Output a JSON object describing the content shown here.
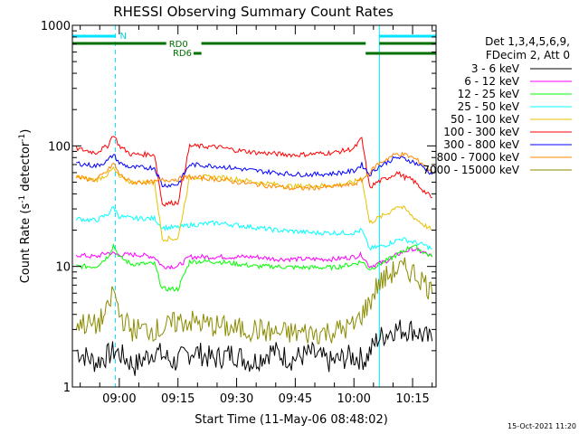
{
  "chart_data": {
    "type": "line",
    "title": "RHESSI Observing Summary Count Rates",
    "xlabel": "Start Time (11-May-06 08:48:02)",
    "ylabel_main": "Count Rate (s",
    "ylabel_sup1": "-1",
    "ylabel_mid": " detector",
    "ylabel_sup2": "-1",
    "ylabel_end": ")",
    "y_scale": "log",
    "ylim": [
      1,
      1000
    ],
    "xlim_minutes": [
      -12,
      81
    ],
    "x_ticks": [
      {
        "minute": 0,
        "label": "09:00"
      },
      {
        "minute": 15,
        "label": "09:15"
      },
      {
        "minute": 30,
        "label": "09:30"
      },
      {
        "minute": 45,
        "label": "09:45"
      },
      {
        "minute": 60,
        "label": "10:00"
      },
      {
        "minute": 75,
        "label": "10:15"
      }
    ],
    "y_ticks": [
      {
        "value": 1,
        "label": "1"
      },
      {
        "value": 10,
        "label": "10"
      },
      {
        "value": 100,
        "label": "100"
      },
      {
        "value": 1000,
        "label": "1000"
      }
    ],
    "legend_header_1": "Det 1,3,4,5,6,9,",
    "legend_header_2": "FDecim 2, Att 0",
    "legend_position": "right",
    "annotations": {
      "n_label": "N",
      "rd0_label": "RD0",
      "rd6_label": "RD6",
      "timestamp": "15-Oct-2021 11:20"
    },
    "night_markers": [
      {
        "from": -12,
        "to": -1
      },
      {
        "from": 66.5,
        "to": 81
      }
    ],
    "rd0_markers": [
      {
        "from": -12,
        "to": 12
      },
      {
        "from": 21,
        "to": 63
      },
      {
        "from": 66.5,
        "to": 81
      }
    ],
    "rd6_markers": [
      {
        "from": 19,
        "to": 21
      },
      {
        "from": 63,
        "to": 81
      }
    ],
    "series": [
      {
        "name": "3 - 6 keV",
        "color": "#000000",
        "points": [
          [
            -11,
            2
          ],
          [
            -6,
            1.6
          ],
          [
            -1,
            2
          ],
          [
            4,
            1.5
          ],
          [
            9,
            2
          ],
          [
            14,
            1.6
          ],
          [
            19,
            2
          ],
          [
            24,
            1.7
          ],
          [
            29,
            1.9
          ],
          [
            34,
            1.6
          ],
          [
            39,
            2
          ],
          [
            44,
            1.7
          ],
          [
            49,
            1.9
          ],
          [
            54,
            1.6
          ],
          [
            59,
            1.8
          ],
          [
            63,
            1.7
          ],
          [
            66,
            2.5
          ],
          [
            70,
            3
          ],
          [
            75,
            3
          ],
          [
            80,
            2.4
          ]
        ]
      },
      {
        "name": "6 - 12 keV",
        "color": "#ff00ff",
        "points": [
          [
            -11,
            12.5
          ],
          [
            -6,
            12
          ],
          [
            -3,
            13
          ],
          [
            0,
            12.5
          ],
          [
            5,
            12.5
          ],
          [
            9,
            12
          ],
          [
            11,
            10
          ],
          [
            15,
            10
          ],
          [
            18,
            12
          ],
          [
            25,
            12
          ],
          [
            30,
            12
          ],
          [
            35,
            12
          ],
          [
            40,
            11.5
          ],
          [
            45,
            11.5
          ],
          [
            50,
            11.5
          ],
          [
            55,
            11.5
          ],
          [
            60,
            12
          ],
          [
            62,
            12.5
          ],
          [
            64,
            10
          ],
          [
            68,
            11
          ],
          [
            72,
            13
          ],
          [
            75,
            14
          ],
          [
            78,
            13
          ],
          [
            80,
            12
          ]
        ]
      },
      {
        "name": "12 - 25 keV",
        "color": "#00ff00",
        "points": [
          [
            -11,
            10
          ],
          [
            -6,
            10
          ],
          [
            -3,
            12
          ],
          [
            -1.5,
            15
          ],
          [
            0,
            12
          ],
          [
            3,
            10.5
          ],
          [
            9,
            10.5
          ],
          [
            11,
            6.5
          ],
          [
            15,
            6.5
          ],
          [
            18,
            11
          ],
          [
            25,
            11
          ],
          [
            30,
            10.5
          ],
          [
            35,
            10
          ],
          [
            40,
            10
          ],
          [
            45,
            9.8
          ],
          [
            50,
            9.8
          ],
          [
            55,
            9.8
          ],
          [
            60,
            10.5
          ],
          [
            62,
            11
          ],
          [
            64,
            9.5
          ],
          [
            68,
            11
          ],
          [
            72,
            13
          ],
          [
            75,
            15
          ],
          [
            78,
            13
          ],
          [
            80,
            12
          ]
        ]
      },
      {
        "name": "25 - 50 keV",
        "color": "#00ffff",
        "points": [
          [
            -11,
            25
          ],
          [
            -6,
            24
          ],
          [
            -3,
            27
          ],
          [
            -1.5,
            31
          ],
          [
            0,
            26
          ],
          [
            3,
            25
          ],
          [
            9,
            25
          ],
          [
            11,
            21
          ],
          [
            15,
            21
          ],
          [
            18,
            22
          ],
          [
            25,
            23
          ],
          [
            30,
            22
          ],
          [
            35,
            21
          ],
          [
            40,
            20
          ],
          [
            45,
            19.5
          ],
          [
            50,
            19
          ],
          [
            55,
            19
          ],
          [
            60,
            19
          ],
          [
            62,
            20
          ],
          [
            64,
            14
          ],
          [
            68,
            15
          ],
          [
            72,
            17
          ],
          [
            75,
            16
          ],
          [
            78,
            15
          ],
          [
            80,
            14
          ]
        ]
      },
      {
        "name": "50 - 100 keV",
        "color": "#e8c000",
        "points": [
          [
            -11,
            55
          ],
          [
            -6,
            52
          ],
          [
            -3,
            58
          ],
          [
            -1.5,
            65
          ],
          [
            0,
            55
          ],
          [
            3,
            50
          ],
          [
            9,
            50
          ],
          [
            11,
            17
          ],
          [
            15,
            17
          ],
          [
            18,
            55
          ],
          [
            25,
            55
          ],
          [
            30,
            53
          ],
          [
            35,
            50
          ],
          [
            40,
            48
          ],
          [
            45,
            46
          ],
          [
            50,
            47
          ],
          [
            55,
            47
          ],
          [
            60,
            50
          ],
          [
            62,
            55
          ],
          [
            64,
            23
          ],
          [
            66,
            25
          ],
          [
            69,
            28
          ],
          [
            71,
            32
          ],
          [
            73,
            30
          ],
          [
            75,
            26
          ],
          [
            78,
            22
          ],
          [
            80,
            20
          ]
        ]
      },
      {
        "name": "100 - 300 keV",
        "color": "#ff0000",
        "points": [
          [
            -11,
            95
          ],
          [
            -6,
            88
          ],
          [
            -3,
            100
          ],
          [
            -1.5,
            125
          ],
          [
            0,
            100
          ],
          [
            3,
            85
          ],
          [
            9,
            85
          ],
          [
            11,
            33
          ],
          [
            15,
            34
          ],
          [
            18,
            100
          ],
          [
            25,
            98
          ],
          [
            30,
            92
          ],
          [
            35,
            88
          ],
          [
            40,
            86
          ],
          [
            45,
            84
          ],
          [
            50,
            86
          ],
          [
            55,
            88
          ],
          [
            60,
            95
          ],
          [
            62,
            115
          ],
          [
            64,
            45
          ],
          [
            66,
            50
          ],
          [
            69,
            55
          ],
          [
            71,
            60
          ],
          [
            73,
            55
          ],
          [
            75,
            52
          ],
          [
            78,
            42
          ],
          [
            80,
            37
          ]
        ]
      },
      {
        "name": "300 - 800 keV",
        "color": "#0000ff",
        "points": [
          [
            -11,
            72
          ],
          [
            -6,
            68
          ],
          [
            -3,
            75
          ],
          [
            -1.5,
            85
          ],
          [
            0,
            72
          ],
          [
            3,
            66
          ],
          [
            9,
            66
          ],
          [
            11,
            47
          ],
          [
            15,
            48
          ],
          [
            18,
            70
          ],
          [
            25,
            68
          ],
          [
            30,
            65
          ],
          [
            35,
            62
          ],
          [
            40,
            60
          ],
          [
            45,
            58
          ],
          [
            50,
            58
          ],
          [
            55,
            59
          ],
          [
            60,
            62
          ],
          [
            62,
            70
          ],
          [
            64,
            58
          ],
          [
            66,
            66
          ],
          [
            69,
            75
          ],
          [
            71,
            80
          ],
          [
            73,
            78
          ],
          [
            75,
            74
          ],
          [
            78,
            66
          ],
          [
            80,
            58
          ]
        ]
      },
      {
        "name": "800 - 7000 keV",
        "color": "#ff8800",
        "points": [
          [
            -11,
            55
          ],
          [
            -6,
            52
          ],
          [
            -3,
            62
          ],
          [
            -1.5,
            72
          ],
          [
            0,
            58
          ],
          [
            3,
            50
          ],
          [
            9,
            50
          ],
          [
            11,
            52
          ],
          [
            15,
            53
          ],
          [
            18,
            55
          ],
          [
            25,
            53
          ],
          [
            30,
            50
          ],
          [
            35,
            48
          ],
          [
            40,
            46
          ],
          [
            45,
            44
          ],
          [
            50,
            45
          ],
          [
            55,
            46
          ],
          [
            60,
            48
          ],
          [
            62,
            52
          ],
          [
            64,
            60
          ],
          [
            66,
            70
          ],
          [
            69,
            80
          ],
          [
            71,
            86
          ],
          [
            73,
            84
          ],
          [
            75,
            80
          ],
          [
            78,
            70
          ],
          [
            80,
            60
          ]
        ]
      },
      {
        "name": "7000 - 15000 keV",
        "color": "#8b8b00",
        "points": [
          [
            -11,
            3.5
          ],
          [
            -6,
            3.2
          ],
          [
            -3,
            4.2
          ],
          [
            -1.5,
            6.5
          ],
          [
            0,
            4
          ],
          [
            3,
            3
          ],
          [
            9,
            3
          ],
          [
            11,
            3
          ],
          [
            15,
            3.5
          ],
          [
            18,
            3.5
          ],
          [
            25,
            3.2
          ],
          [
            30,
            3
          ],
          [
            35,
            3
          ],
          [
            40,
            2.8
          ],
          [
            45,
            2.8
          ],
          [
            50,
            2.8
          ],
          [
            55,
            2.9
          ],
          [
            60,
            3.2
          ],
          [
            62,
            4
          ],
          [
            64,
            5
          ],
          [
            66,
            7
          ],
          [
            69,
            8.5
          ],
          [
            71,
            9.5
          ],
          [
            73,
            9.5
          ],
          [
            75,
            9
          ],
          [
            78,
            7.5
          ],
          [
            80,
            6
          ]
        ]
      }
    ]
  }
}
